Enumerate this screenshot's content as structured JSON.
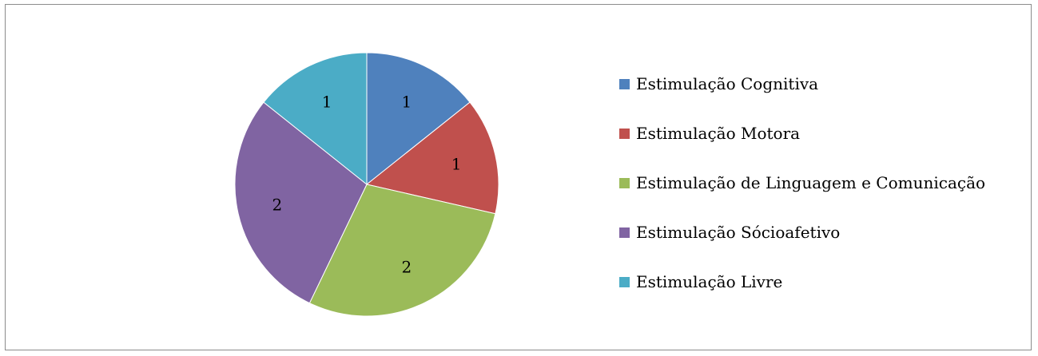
{
  "chart_data": {
    "type": "pie",
    "title": "",
    "slices": [
      {
        "label": "Estimulação Cognitiva",
        "value": 1,
        "value_label": "1",
        "color": "#4F81BD"
      },
      {
        "label": "Estimulação Motora",
        "value": 1,
        "value_label": "1",
        "color": "#C0504D"
      },
      {
        "label": "Estimulação de Linguagem e Comunicação",
        "value": 2,
        "value_label": "2",
        "color": "#9BBB59"
      },
      {
        "label": "Estimulação Sócioafetivo",
        "value": 2,
        "value_label": "2",
        "color": "#8064A2"
      },
      {
        "label": "Estimulação Livre",
        "value": 1,
        "value_label": "1",
        "color": "#4BACC6"
      }
    ],
    "legend_position": "right"
  }
}
